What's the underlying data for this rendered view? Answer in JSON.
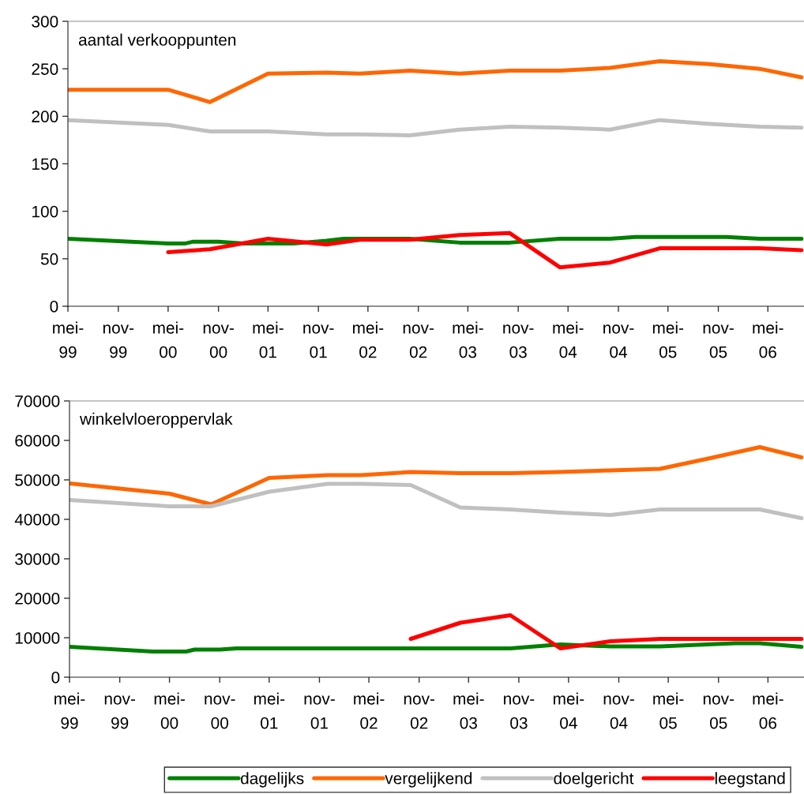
{
  "chart_data": [
    {
      "type": "line",
      "title": "aantal verkooppunten",
      "xlim": [
        "1999-05-01",
        "2006-09-10"
      ],
      "xticks": [
        {
          "value": "1999-05",
          "label": "mei-\n99"
        },
        {
          "value": "1999-11",
          "label": "nov-\n99"
        },
        {
          "value": "2000-05",
          "label": "mei-\n00"
        },
        {
          "value": "2000-11",
          "label": "nov-\n00"
        },
        {
          "value": "2001-05",
          "label": "mei-\n01"
        },
        {
          "value": "2001-11",
          "label": "nov-\n01"
        },
        {
          "value": "2002-05",
          "label": "mei-\n02"
        },
        {
          "value": "2002-11",
          "label": "nov-\n02"
        },
        {
          "value": "2003-05",
          "label": "mei-\n03"
        },
        {
          "value": "2003-11",
          "label": "nov-\n03"
        },
        {
          "value": "2004-05",
          "label": "mei-\n04"
        },
        {
          "value": "2004-11",
          "label": "nov-\n04"
        },
        {
          "value": "2005-05",
          "label": "mei-\n05"
        },
        {
          "value": "2005-11",
          "label": "nov-\n05"
        },
        {
          "value": "2006-05",
          "label": "mei-\n06"
        }
      ],
      "ylim": [
        0,
        300
      ],
      "yticks": [
        0,
        50,
        100,
        150,
        200,
        250,
        300
      ],
      "series": [
        {
          "color": "#008000",
          "x": [
            "1999-05",
            "2000-05",
            "2000-07",
            "2000-08",
            "2000-11",
            "2001-02",
            "2001-08",
            "2001-12",
            "2002-02",
            "2002-10",
            "2003-04",
            "2003-10",
            "2004-04",
            "2004-10",
            "2005-01",
            "2005-12",
            "2006-04",
            "2006-09"
          ],
          "values": [
            71,
            66,
            66,
            68,
            68,
            66,
            66,
            69,
            71,
            71,
            67,
            67,
            71,
            71,
            73,
            73,
            71,
            71
          ]
        },
        {
          "color": "#ff6600",
          "x": [
            "1999-05",
            "2000-05",
            "2000-10",
            "2001-05",
            "2001-12",
            "2002-04",
            "2002-10",
            "2003-04",
            "2003-10",
            "2004-04",
            "2004-10",
            "2005-04",
            "2005-10",
            "2006-04",
            "2006-09"
          ],
          "values": [
            228,
            228,
            215,
            245,
            246,
            245,
            248,
            245,
            248,
            248,
            251,
            258,
            255,
            250,
            241
          ]
        },
        {
          "color": "#c0c0c0",
          "x": [
            "1999-05",
            "2000-05",
            "2000-10",
            "2001-05",
            "2001-12",
            "2002-04",
            "2002-10",
            "2003-04",
            "2003-10",
            "2004-04",
            "2004-10",
            "2005-04",
            "2005-10",
            "2006-04",
            "2006-09"
          ],
          "values": [
            196,
            191,
            184,
            184,
            181,
            181,
            180,
            186,
            189,
            188,
            186,
            196,
            192,
            189,
            188
          ]
        },
        {
          "color": "#ff0000",
          "x": [
            "2000-05",
            "2000-10",
            "2001-05",
            "2001-12",
            "2002-04",
            "2002-10",
            "2003-04",
            "2003-10",
            "2004-04",
            "2004-10",
            "2005-04",
            "2005-10",
            "2006-04",
            "2006-09"
          ],
          "values": [
            57,
            60,
            71,
            65,
            70,
            70,
            75,
            77,
            41,
            46,
            61,
            61,
            61,
            59
          ]
        }
      ]
    },
    {
      "type": "line",
      "title": "winkelvloeroppervlak",
      "xlim": [
        "1999-05-01",
        "2006-09-10"
      ],
      "xticks": [
        {
          "value": "1999-05",
          "label": "mei-\n99"
        },
        {
          "value": "1999-11",
          "label": "nov-\n99"
        },
        {
          "value": "2000-05",
          "label": "mei-\n00"
        },
        {
          "value": "2000-11",
          "label": "nov-\n00"
        },
        {
          "value": "2001-05",
          "label": "mei-\n01"
        },
        {
          "value": "2001-11",
          "label": "nov-\n01"
        },
        {
          "value": "2002-05",
          "label": "mei-\n02"
        },
        {
          "value": "2002-11",
          "label": "nov-\n02"
        },
        {
          "value": "2003-05",
          "label": "mei-\n03"
        },
        {
          "value": "2003-11",
          "label": "nov-\n03"
        },
        {
          "value": "2004-05",
          "label": "mei-\n04"
        },
        {
          "value": "2004-11",
          "label": "nov-\n04"
        },
        {
          "value": "2005-05",
          "label": "mei-\n05"
        },
        {
          "value": "2005-11",
          "label": "nov-\n05"
        },
        {
          "value": "2006-05",
          "label": "mei-\n06"
        }
      ],
      "ylim": [
        0,
        70000
      ],
      "yticks": [
        0,
        10000,
        20000,
        30000,
        40000,
        50000,
        60000,
        70000
      ],
      "legend": "bottom",
      "series": [
        {
          "name": "dagelijks",
          "color": "#008000",
          "x": [
            "1999-05",
            "2000-03",
            "2000-07",
            "2000-08",
            "2000-11",
            "2001-01",
            "2003-10",
            "2004-04",
            "2004-10",
            "2005-04",
            "2006-01",
            "2006-04",
            "2006-09"
          ],
          "values": [
            7700,
            6500,
            6500,
            7000,
            7000,
            7300,
            7300,
            8300,
            7800,
            7800,
            8600,
            8600,
            7700
          ]
        },
        {
          "name": "vergelijkend",
          "color": "#ff6600",
          "x": [
            "1999-05",
            "2000-05",
            "2000-10",
            "2001-05",
            "2001-12",
            "2002-04",
            "2002-10",
            "2003-04",
            "2003-10",
            "2004-04",
            "2004-10",
            "2005-04",
            "2005-10",
            "2006-04",
            "2006-09"
          ],
          "values": [
            49100,
            46500,
            43800,
            50500,
            51200,
            51200,
            52000,
            51700,
            51700,
            52000,
            52400,
            52800,
            55500,
            58300,
            55700
          ]
        },
        {
          "name": "doelgericht",
          "color": "#c0c0c0",
          "x": [
            "1999-05",
            "2000-05",
            "2000-10",
            "2001-05",
            "2001-12",
            "2002-04",
            "2002-10",
            "2003-04",
            "2003-10",
            "2004-04",
            "2004-10",
            "2005-04",
            "2005-10",
            "2006-04",
            "2006-09"
          ],
          "values": [
            44900,
            43300,
            43300,
            47000,
            49000,
            49000,
            48700,
            43000,
            42500,
            41700,
            41100,
            42500,
            42500,
            42500,
            40300
          ]
        },
        {
          "name": "leegstand",
          "color": "#ff0000",
          "x": [
            "2002-10",
            "2003-04",
            "2003-10",
            "2004-04",
            "2004-10",
            "2005-04",
            "2005-10",
            "2006-04",
            "2006-09"
          ],
          "values": [
            9700,
            13800,
            15700,
            7300,
            9100,
            9700,
            9700,
            9700,
            9700
          ]
        }
      ]
    }
  ]
}
